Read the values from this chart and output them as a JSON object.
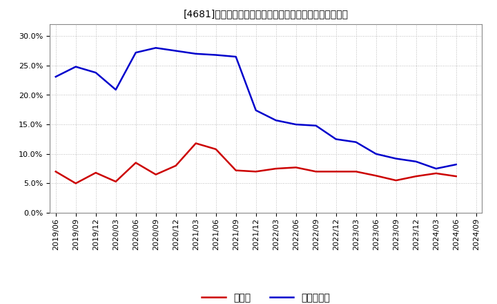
{
  "title": "[4681]　現須金、有利子負債の総資産に対する比率の推移",
  "ylim": [
    0.0,
    0.32
  ],
  "yticks": [
    0.0,
    0.05,
    0.1,
    0.15,
    0.2,
    0.25,
    0.3
  ],
  "dates": [
    "2019/06",
    "2019/09",
    "2019/12",
    "2020/03",
    "2020/06",
    "2020/09",
    "2020/12",
    "2021/03",
    "2021/06",
    "2021/09",
    "2021/12",
    "2022/03",
    "2022/06",
    "2022/09",
    "2022/12",
    "2023/03",
    "2023/06",
    "2023/09",
    "2023/12",
    "2024/03",
    "2024/06",
    "2024/09"
  ],
  "cash": [
    0.07,
    0.05,
    0.068,
    0.053,
    0.085,
    0.065,
    0.08,
    0.118,
    0.108,
    0.072,
    0.07,
    0.075,
    0.077,
    0.07,
    0.07,
    0.07,
    0.063,
    0.055,
    0.062,
    0.067,
    0.062,
    null
  ],
  "debt": [
    0.231,
    0.248,
    0.238,
    0.209,
    0.272,
    0.28,
    0.275,
    0.27,
    0.268,
    0.265,
    0.174,
    0.157,
    0.15,
    0.148,
    0.125,
    0.12,
    0.1,
    0.092,
    0.087,
    0.075,
    0.082,
    null
  ],
  "cash_color": "#cc0000",
  "debt_color": "#0000cc",
  "bg_color": "#ffffff",
  "plot_bg_color": "#ffffff",
  "grid_color": "#aaaaaa",
  "legend_cash": "現須金",
  "legend_debt": "有利子負債",
  "title_fontsize": 12,
  "tick_fontsize": 8,
  "legend_fontsize": 10
}
